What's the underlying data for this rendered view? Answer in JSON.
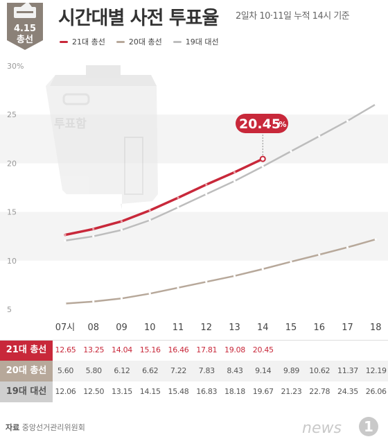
{
  "header": {
    "badge": {
      "line1": "4.15",
      "line2": "총선"
    },
    "title": "시간대별 사전 투표율",
    "subtitle": "2일차 10·11일 누적 14시 기준"
  },
  "box_label": "투표함",
  "callout": {
    "value": "20.45",
    "unit": "%"
  },
  "source": {
    "label": "자료",
    "text": "중앙선거관리위원회"
  },
  "logo": {
    "text": "news",
    "mark": "1"
  },
  "colors": {
    "s21": "#c8283a",
    "s20": "#b7a89a",
    "s19": "#bdbdbd",
    "s19_label_bg": "#cfcfcf"
  },
  "chart_data": {
    "type": "line",
    "x": [
      "07시",
      "08",
      "09",
      "10",
      "11",
      "12",
      "13",
      "14",
      "15",
      "16",
      "17",
      "18"
    ],
    "y_ticks": [
      "30%",
      "25",
      "20",
      "15",
      "10",
      "5"
    ],
    "ylim": [
      5,
      30
    ],
    "legend_position": "top-left",
    "series": [
      {
        "name": "21대 총선",
        "label": "21대 총선",
        "values": [
          12.65,
          13.25,
          14.04,
          15.16,
          16.46,
          17.81,
          19.08,
          20.45,
          null,
          null,
          null,
          null
        ],
        "display": [
          "12.65",
          "13.25",
          "14.04",
          "15.16",
          "16.46",
          "17.81",
          "19.08",
          "20.45",
          "",
          "",
          "",
          ""
        ]
      },
      {
        "name": "20대 총선",
        "label": "20대 총선",
        "values": [
          5.6,
          5.8,
          6.12,
          6.62,
          7.22,
          7.83,
          8.43,
          9.14,
          9.89,
          10.62,
          11.37,
          12.19
        ],
        "display": [
          "5.60",
          "5.80",
          "6.12",
          "6.62",
          "7.22",
          "7.83",
          "8.43",
          "9.14",
          "9.89",
          "10.62",
          "11.37",
          "12.19"
        ]
      },
      {
        "name": "19대 대선",
        "label": "19대 대선",
        "values": [
          12.06,
          12.5,
          13.15,
          14.15,
          15.48,
          16.83,
          18.18,
          19.67,
          21.23,
          22.78,
          24.35,
          26.06
        ],
        "display": [
          "12.06",
          "12.50",
          "13.15",
          "14.15",
          "15.48",
          "16.83",
          "18.18",
          "19.67",
          "21.23",
          "22.78",
          "24.35",
          "26.06"
        ]
      }
    ]
  }
}
